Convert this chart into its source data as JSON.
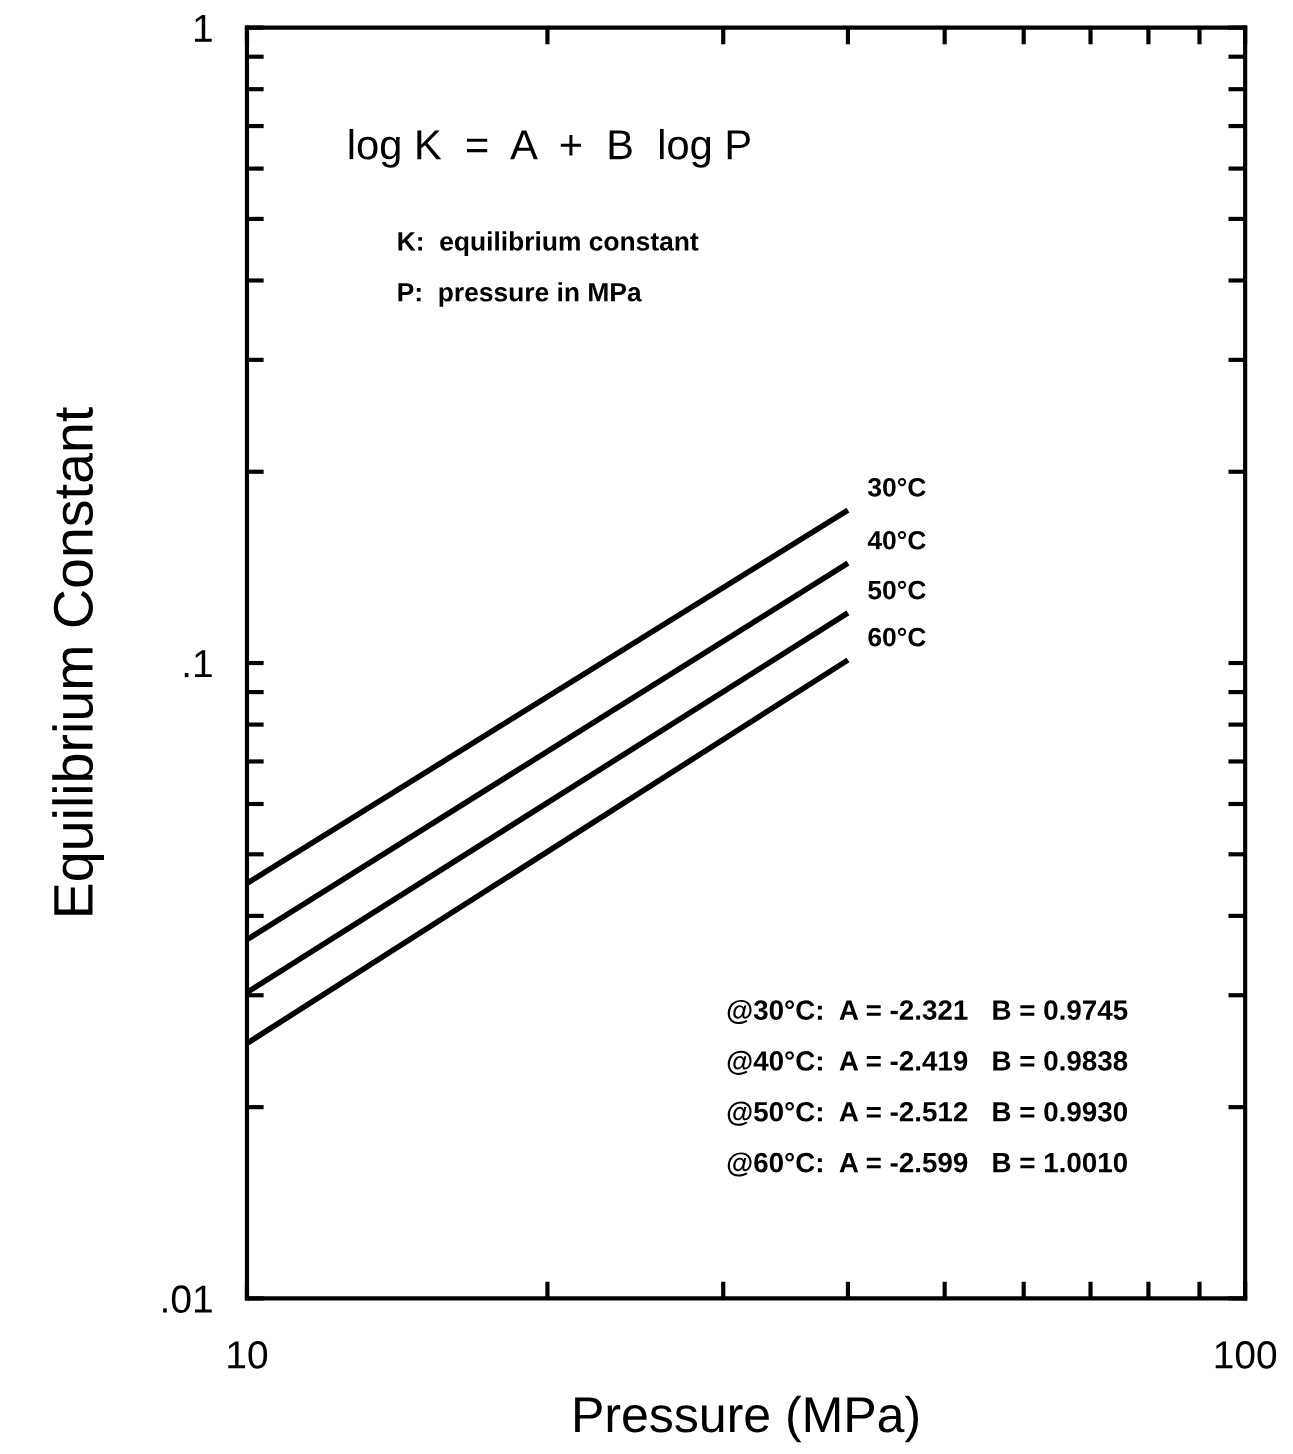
{
  "chart_data": {
    "type": "line",
    "xlabel": "Pressure (MPa)",
    "ylabel": "Equilibrium Constant",
    "log": "xy",
    "xlim": [
      10,
      100
    ],
    "ylim": [
      0.01,
      1
    ],
    "xticks": [
      10,
      100
    ],
    "yticks": [
      {
        "value": 0.01,
        "label": ".01"
      },
      {
        "value": 0.1,
        "label": ".1"
      },
      {
        "value": 1,
        "label": "1"
      }
    ],
    "x": [
      10,
      40
    ],
    "grid": false,
    "legend": false,
    "marker": "none",
    "line_style": "solid",
    "series": [
      {
        "name": "30°C",
        "color": "#000000",
        "values": [
          0.045,
          0.174
        ]
      },
      {
        "name": "40°C",
        "color": "#000000",
        "values": [
          0.0367,
          0.1436
        ]
      },
      {
        "name": "50°C",
        "color": "#000000",
        "values": [
          0.0303,
          0.1199
        ]
      },
      {
        "name": "60°C",
        "color": "#000000",
        "values": [
          0.0252,
          0.1011
        ]
      }
    ],
    "annotations": [
      "log K  =  A  +  B  log P",
      "K:  equilibrium constant",
      "P:  pressure in MPa",
      "@30°C:  A = -2.321   B = 0.9745",
      "@40°C:  A = -2.419   B = 0.9838",
      "@50°C:  A = -2.512   B = 0.9930",
      "@60°C:  A = -2.599   B = 1.0010"
    ]
  }
}
